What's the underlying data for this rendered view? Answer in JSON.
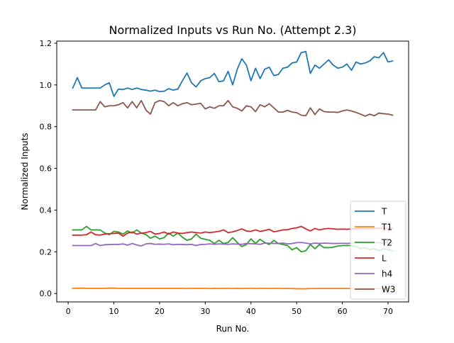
{
  "chart_data": {
    "type": "line",
    "title": "Normalized Inputs vs Run No. (Attempt 2.3)",
    "xlabel": "Run No.",
    "ylabel": "Normalized Inputs",
    "xlim": [
      -2.5,
      74.5
    ],
    "ylim": [
      -0.04,
      1.21
    ],
    "x_ticks": [
      0,
      10,
      20,
      30,
      40,
      50,
      60,
      70
    ],
    "y_ticks": [
      0.0,
      0.2,
      0.4,
      0.6,
      0.8,
      1.0,
      1.2
    ],
    "x_tick_labels": [
      "0",
      "10",
      "20",
      "30",
      "40",
      "50",
      "60",
      "70"
    ],
    "y_tick_labels": [
      "0.0",
      "0.2",
      "0.4",
      "0.6",
      "0.8",
      "1.0",
      "1.2"
    ],
    "grid": false,
    "legend_position": "lower-right",
    "x": [
      1,
      2,
      3,
      4,
      5,
      6,
      7,
      8,
      9,
      10,
      11,
      12,
      13,
      14,
      15,
      16,
      17,
      18,
      19,
      20,
      21,
      22,
      23,
      24,
      25,
      26,
      27,
      28,
      29,
      30,
      31,
      32,
      33,
      34,
      35,
      36,
      37,
      38,
      39,
      40,
      41,
      42,
      43,
      44,
      45,
      46,
      47,
      48,
      49,
      50,
      51,
      52,
      53,
      54,
      55,
      56,
      57,
      58,
      59,
      60,
      61,
      62,
      63,
      64,
      65,
      66,
      67,
      68,
      69,
      70,
      71
    ],
    "series": [
      {
        "name": "T",
        "color": "#1f77b4",
        "values": [
          0.985,
          1.035,
          0.985,
          0.985,
          0.985,
          0.985,
          0.985,
          1.0,
          1.01,
          0.945,
          0.98,
          0.978,
          0.985,
          0.978,
          0.985,
          0.978,
          0.975,
          0.97,
          0.975,
          0.968,
          0.97,
          0.982,
          0.975,
          0.98,
          1.02,
          1.057,
          1.01,
          0.99,
          1.02,
          1.03,
          1.035,
          1.055,
          1.015,
          1.02,
          1.065,
          1.0,
          1.075,
          1.125,
          1.095,
          1.02,
          1.08,
          1.03,
          1.075,
          1.085,
          1.045,
          1.05,
          1.08,
          1.085,
          1.105,
          1.11,
          1.155,
          1.16,
          1.055,
          1.095,
          1.08,
          1.1,
          1.12,
          1.095,
          1.08,
          1.085,
          1.1,
          1.07,
          1.11,
          1.1,
          1.105,
          1.115,
          1.135,
          1.13,
          1.155,
          1.11,
          1.115
        ]
      },
      {
        "name": "T1",
        "color": "#ff7f0e",
        "values": [
          0.025,
          0.025,
          0.026,
          0.025,
          0.025,
          0.025,
          0.025,
          0.025,
          0.026,
          0.026,
          0.025,
          0.025,
          0.025,
          0.025,
          0.025,
          0.025,
          0.025,
          0.025,
          0.025,
          0.025,
          0.025,
          0.025,
          0.025,
          0.025,
          0.025,
          0.024,
          0.025,
          0.025,
          0.025,
          0.025,
          0.024,
          0.025,
          0.024,
          0.025,
          0.025,
          0.024,
          0.025,
          0.024,
          0.025,
          0.025,
          0.024,
          0.025,
          0.025,
          0.024,
          0.025,
          0.025,
          0.024,
          0.024,
          0.024,
          0.023,
          0.023,
          0.023,
          0.024,
          0.024,
          0.024,
          0.024,
          0.024,
          0.024,
          0.024,
          0.024,
          0.024,
          0.024,
          0.024,
          0.024,
          0.024,
          0.024,
          0.024,
          0.024,
          0.024,
          0.024,
          0.024
        ]
      },
      {
        "name": "T2",
        "color": "#2ca02c",
        "values": [
          0.305,
          0.305,
          0.305,
          0.322,
          0.305,
          0.305,
          0.305,
          0.29,
          0.282,
          0.298,
          0.295,
          0.285,
          0.3,
          0.29,
          0.305,
          0.29,
          0.283,
          0.265,
          0.275,
          0.262,
          0.268,
          0.29,
          0.275,
          0.29,
          0.27,
          0.255,
          0.262,
          0.285,
          0.265,
          0.26,
          0.255,
          0.24,
          0.255,
          0.24,
          0.245,
          0.268,
          0.245,
          0.225,
          0.235,
          0.262,
          0.24,
          0.26,
          0.245,
          0.235,
          0.255,
          0.24,
          0.235,
          0.23,
          0.21,
          0.22,
          0.2,
          0.205,
          0.235,
          0.215,
          0.235,
          0.22,
          0.22,
          0.222,
          0.228,
          0.23,
          0.23,
          0.23,
          0.225,
          0.215,
          0.22,
          0.21,
          0.215,
          0.205,
          0.215,
          0.21,
          0.205
        ]
      },
      {
        "name": "L",
        "color": "#d62728",
        "values": [
          0.28,
          0.28,
          0.28,
          0.282,
          0.295,
          0.282,
          0.28,
          0.285,
          0.287,
          0.288,
          0.29,
          0.275,
          0.29,
          0.295,
          0.285,
          0.29,
          0.292,
          0.298,
          0.285,
          0.288,
          0.295,
          0.285,
          0.295,
          0.29,
          0.288,
          0.292,
          0.295,
          0.292,
          0.29,
          0.295,
          0.292,
          0.295,
          0.298,
          0.305,
          0.292,
          0.296,
          0.302,
          0.31,
          0.3,
          0.298,
          0.305,
          0.298,
          0.302,
          0.308,
          0.296,
          0.3,
          0.305,
          0.306,
          0.312,
          0.315,
          0.322,
          0.31,
          0.3,
          0.312,
          0.305,
          0.31,
          0.312,
          0.31,
          0.308,
          0.309,
          0.308,
          0.31,
          0.31,
          0.312,
          0.31,
          0.311,
          0.312,
          0.313,
          0.312,
          0.312,
          0.312
        ]
      },
      {
        "name": "h4",
        "color": "#9467bd",
        "values": [
          0.23,
          0.23,
          0.23,
          0.23,
          0.23,
          0.24,
          0.23,
          0.234,
          0.235,
          0.236,
          0.235,
          0.238,
          0.232,
          0.24,
          0.233,
          0.228,
          0.238,
          0.24,
          0.236,
          0.237,
          0.236,
          0.238,
          0.234,
          0.236,
          0.235,
          0.234,
          0.236,
          0.23,
          0.235,
          0.236,
          0.238,
          0.236,
          0.238,
          0.237,
          0.236,
          0.238,
          0.237,
          0.236,
          0.24,
          0.239,
          0.238,
          0.236,
          0.242,
          0.241,
          0.24,
          0.24,
          0.242,
          0.238,
          0.24,
          0.244,
          0.245,
          0.242,
          0.238,
          0.242,
          0.24,
          0.242,
          0.241,
          0.24,
          0.24,
          0.241,
          0.24,
          0.242,
          0.245,
          0.246,
          0.245,
          0.244,
          0.245,
          0.244,
          0.243,
          0.244,
          0.242
        ]
      },
      {
        "name": "W3",
        "color": "#8c564b",
        "values": [
          0.88,
          0.88,
          0.88,
          0.88,
          0.88,
          0.88,
          0.92,
          0.895,
          0.9,
          0.9,
          0.905,
          0.915,
          0.89,
          0.92,
          0.89,
          0.925,
          0.88,
          0.86,
          0.915,
          0.925,
          0.92,
          0.9,
          0.915,
          0.9,
          0.91,
          0.915,
          0.905,
          0.908,
          0.912,
          0.885,
          0.895,
          0.888,
          0.9,
          0.9,
          0.925,
          0.895,
          0.888,
          0.875,
          0.9,
          0.895,
          0.872,
          0.905,
          0.895,
          0.91,
          0.89,
          0.87,
          0.87,
          0.878,
          0.87,
          0.867,
          0.855,
          0.852,
          0.89,
          0.858,
          0.885,
          0.872,
          0.87,
          0.87,
          0.868,
          0.875,
          0.88,
          0.875,
          0.868,
          0.86,
          0.85,
          0.86,
          0.852,
          0.865,
          0.862,
          0.86,
          0.855
        ]
      }
    ]
  }
}
